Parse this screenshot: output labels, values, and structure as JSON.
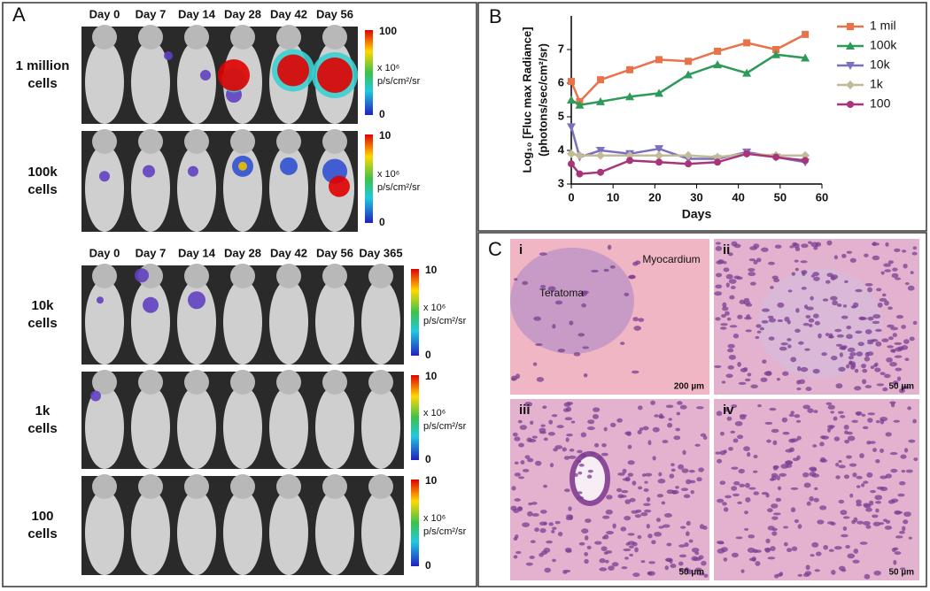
{
  "panel_a": {
    "label": "A",
    "days_top": [
      "Day 0",
      "Day 7",
      "Day 14",
      "Day 28",
      "Day 42",
      "Day 56"
    ],
    "days_bottom": [
      "Day 0",
      "Day 7",
      "Day 14",
      "Day 28",
      "Day 42",
      "Day 56",
      "Day 365"
    ],
    "rows": [
      {
        "label": [
          "1 million",
          "cells"
        ],
        "scale_max": "100",
        "scale_min": "0"
      },
      {
        "label": [
          "100k",
          "cells"
        ],
        "scale_max": "10",
        "scale_min": "0"
      },
      {
        "label": [
          "10k",
          "cells"
        ],
        "scale_max": "10",
        "scale_min": "0"
      },
      {
        "label": [
          "1k",
          "cells"
        ],
        "scale_max": "10",
        "scale_min": "0"
      },
      {
        "label": [
          "100",
          "cells"
        ],
        "scale_max": "10",
        "scale_min": "0"
      }
    ],
    "scale_unit": [
      "x 10⁶",
      "p/s/cm²/sr"
    ]
  },
  "chart_data": {
    "type": "line",
    "panel_label": "B",
    "y_label": [
      "Log₁₀ [Fluc max Radiance]",
      "(photons/sec/cm²/sr)"
    ],
    "x_label": "Days",
    "x": [
      0,
      2,
      7,
      14,
      21,
      28,
      35,
      42,
      49,
      56
    ],
    "series": [
      {
        "name": "1 mil",
        "color": "#e8734a",
        "marker": "square",
        "values": [
          6.05,
          5.45,
          6.1,
          6.4,
          6.7,
          6.65,
          6.95,
          7.2,
          7.0,
          7.45
        ]
      },
      {
        "name": "100k",
        "color": "#2e9a5a",
        "marker": "triangle",
        "values": [
          5.5,
          5.35,
          5.45,
          5.6,
          5.7,
          6.25,
          6.55,
          6.3,
          6.85,
          6.75
        ]
      },
      {
        "name": "10k",
        "color": "#7b6fc0",
        "marker": "down-triangle",
        "values": [
          4.7,
          3.8,
          4.0,
          3.9,
          4.05,
          3.75,
          3.75,
          3.95,
          3.8,
          3.65
        ]
      },
      {
        "name": "1k",
        "color": "#c2bb98",
        "marker": "diamond",
        "values": [
          3.9,
          3.85,
          3.85,
          3.85,
          3.85,
          3.85,
          3.8,
          3.9,
          3.85,
          3.85
        ]
      },
      {
        "name": "100",
        "color": "#a8357a",
        "marker": "circle",
        "values": [
          3.6,
          3.3,
          3.35,
          3.7,
          3.65,
          3.6,
          3.65,
          3.9,
          3.8,
          3.7
        ]
      }
    ],
    "xlim": [
      0,
      60
    ],
    "xticks": [
      0,
      10,
      20,
      30,
      40,
      50,
      60
    ],
    "ylim": [
      3,
      8
    ],
    "yticks": [
      3,
      4,
      5,
      6,
      7
    ]
  },
  "panel_c": {
    "label": "C",
    "tiles": [
      {
        "label": "i",
        "scale": "200 µm",
        "notes": [
          "Teratoma",
          "Myocardium"
        ]
      },
      {
        "label": "ii",
        "scale": "50 µm",
        "notes": []
      },
      {
        "label": "iii",
        "scale": "50 µm",
        "notes": []
      },
      {
        "label": "iv",
        "scale": "50 µm",
        "notes": []
      }
    ]
  }
}
